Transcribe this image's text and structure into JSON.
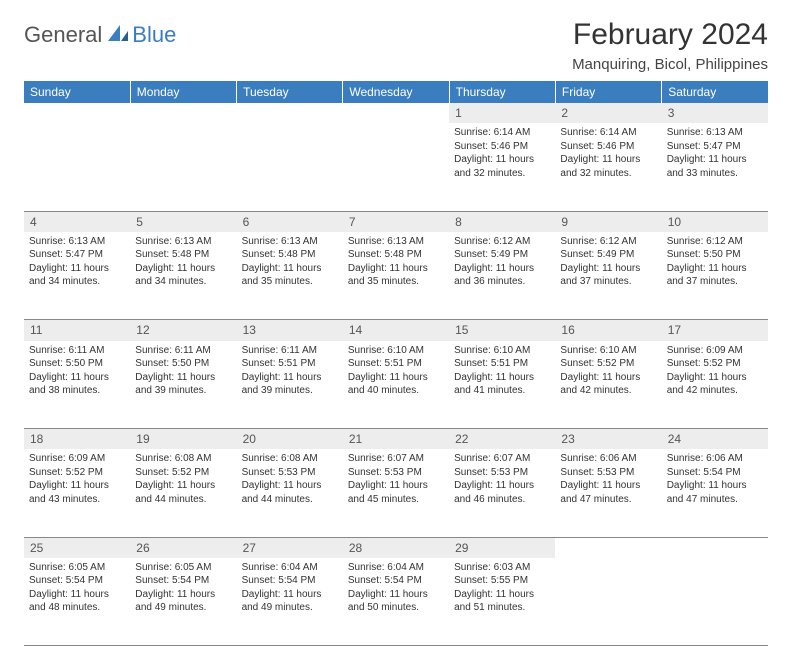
{
  "brand": {
    "text1": "General",
    "text2": "Blue"
  },
  "title": "February 2024",
  "location": "Manquiring, Bicol, Philippines",
  "colors": {
    "header_bg": "#3a7ebf",
    "header_fg": "#ffffff",
    "daynum_bg": "#ededed",
    "border": "#888888",
    "text": "#333333"
  },
  "weekdays": [
    "Sunday",
    "Monday",
    "Tuesday",
    "Wednesday",
    "Thursday",
    "Friday",
    "Saturday"
  ],
  "weeks": [
    {
      "nums": [
        "",
        "",
        "",
        "",
        "1",
        "2",
        "3"
      ],
      "cells": [
        null,
        null,
        null,
        null,
        {
          "sunrise": "Sunrise: 6:14 AM",
          "sunset": "Sunset: 5:46 PM",
          "day1": "Daylight: 11 hours",
          "day2": "and 32 minutes."
        },
        {
          "sunrise": "Sunrise: 6:14 AM",
          "sunset": "Sunset: 5:46 PM",
          "day1": "Daylight: 11 hours",
          "day2": "and 32 minutes."
        },
        {
          "sunrise": "Sunrise: 6:13 AM",
          "sunset": "Sunset: 5:47 PM",
          "day1": "Daylight: 11 hours",
          "day2": "and 33 minutes."
        }
      ]
    },
    {
      "nums": [
        "4",
        "5",
        "6",
        "7",
        "8",
        "9",
        "10"
      ],
      "cells": [
        {
          "sunrise": "Sunrise: 6:13 AM",
          "sunset": "Sunset: 5:47 PM",
          "day1": "Daylight: 11 hours",
          "day2": "and 34 minutes."
        },
        {
          "sunrise": "Sunrise: 6:13 AM",
          "sunset": "Sunset: 5:48 PM",
          "day1": "Daylight: 11 hours",
          "day2": "and 34 minutes."
        },
        {
          "sunrise": "Sunrise: 6:13 AM",
          "sunset": "Sunset: 5:48 PM",
          "day1": "Daylight: 11 hours",
          "day2": "and 35 minutes."
        },
        {
          "sunrise": "Sunrise: 6:13 AM",
          "sunset": "Sunset: 5:48 PM",
          "day1": "Daylight: 11 hours",
          "day2": "and 35 minutes."
        },
        {
          "sunrise": "Sunrise: 6:12 AM",
          "sunset": "Sunset: 5:49 PM",
          "day1": "Daylight: 11 hours",
          "day2": "and 36 minutes."
        },
        {
          "sunrise": "Sunrise: 6:12 AM",
          "sunset": "Sunset: 5:49 PM",
          "day1": "Daylight: 11 hours",
          "day2": "and 37 minutes."
        },
        {
          "sunrise": "Sunrise: 6:12 AM",
          "sunset": "Sunset: 5:50 PM",
          "day1": "Daylight: 11 hours",
          "day2": "and 37 minutes."
        }
      ]
    },
    {
      "nums": [
        "11",
        "12",
        "13",
        "14",
        "15",
        "16",
        "17"
      ],
      "cells": [
        {
          "sunrise": "Sunrise: 6:11 AM",
          "sunset": "Sunset: 5:50 PM",
          "day1": "Daylight: 11 hours",
          "day2": "and 38 minutes."
        },
        {
          "sunrise": "Sunrise: 6:11 AM",
          "sunset": "Sunset: 5:50 PM",
          "day1": "Daylight: 11 hours",
          "day2": "and 39 minutes."
        },
        {
          "sunrise": "Sunrise: 6:11 AM",
          "sunset": "Sunset: 5:51 PM",
          "day1": "Daylight: 11 hours",
          "day2": "and 39 minutes."
        },
        {
          "sunrise": "Sunrise: 6:10 AM",
          "sunset": "Sunset: 5:51 PM",
          "day1": "Daylight: 11 hours",
          "day2": "and 40 minutes."
        },
        {
          "sunrise": "Sunrise: 6:10 AM",
          "sunset": "Sunset: 5:51 PM",
          "day1": "Daylight: 11 hours",
          "day2": "and 41 minutes."
        },
        {
          "sunrise": "Sunrise: 6:10 AM",
          "sunset": "Sunset: 5:52 PM",
          "day1": "Daylight: 11 hours",
          "day2": "and 42 minutes."
        },
        {
          "sunrise": "Sunrise: 6:09 AM",
          "sunset": "Sunset: 5:52 PM",
          "day1": "Daylight: 11 hours",
          "day2": "and 42 minutes."
        }
      ]
    },
    {
      "nums": [
        "18",
        "19",
        "20",
        "21",
        "22",
        "23",
        "24"
      ],
      "cells": [
        {
          "sunrise": "Sunrise: 6:09 AM",
          "sunset": "Sunset: 5:52 PM",
          "day1": "Daylight: 11 hours",
          "day2": "and 43 minutes."
        },
        {
          "sunrise": "Sunrise: 6:08 AM",
          "sunset": "Sunset: 5:52 PM",
          "day1": "Daylight: 11 hours",
          "day2": "and 44 minutes."
        },
        {
          "sunrise": "Sunrise: 6:08 AM",
          "sunset": "Sunset: 5:53 PM",
          "day1": "Daylight: 11 hours",
          "day2": "and 44 minutes."
        },
        {
          "sunrise": "Sunrise: 6:07 AM",
          "sunset": "Sunset: 5:53 PM",
          "day1": "Daylight: 11 hours",
          "day2": "and 45 minutes."
        },
        {
          "sunrise": "Sunrise: 6:07 AM",
          "sunset": "Sunset: 5:53 PM",
          "day1": "Daylight: 11 hours",
          "day2": "and 46 minutes."
        },
        {
          "sunrise": "Sunrise: 6:06 AM",
          "sunset": "Sunset: 5:53 PM",
          "day1": "Daylight: 11 hours",
          "day2": "and 47 minutes."
        },
        {
          "sunrise": "Sunrise: 6:06 AM",
          "sunset": "Sunset: 5:54 PM",
          "day1": "Daylight: 11 hours",
          "day2": "and 47 minutes."
        }
      ]
    },
    {
      "nums": [
        "25",
        "26",
        "27",
        "28",
        "29",
        "",
        ""
      ],
      "cells": [
        {
          "sunrise": "Sunrise: 6:05 AM",
          "sunset": "Sunset: 5:54 PM",
          "day1": "Daylight: 11 hours",
          "day2": "and 48 minutes."
        },
        {
          "sunrise": "Sunrise: 6:05 AM",
          "sunset": "Sunset: 5:54 PM",
          "day1": "Daylight: 11 hours",
          "day2": "and 49 minutes."
        },
        {
          "sunrise": "Sunrise: 6:04 AM",
          "sunset": "Sunset: 5:54 PM",
          "day1": "Daylight: 11 hours",
          "day2": "and 49 minutes."
        },
        {
          "sunrise": "Sunrise: 6:04 AM",
          "sunset": "Sunset: 5:54 PM",
          "day1": "Daylight: 11 hours",
          "day2": "and 50 minutes."
        },
        {
          "sunrise": "Sunrise: 6:03 AM",
          "sunset": "Sunset: 5:55 PM",
          "day1": "Daylight: 11 hours",
          "day2": "and 51 minutes."
        },
        null,
        null
      ]
    }
  ]
}
